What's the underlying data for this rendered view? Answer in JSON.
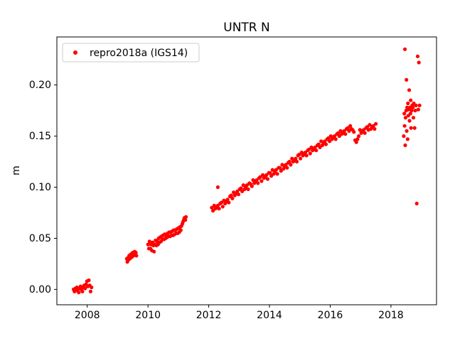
{
  "chart_data": {
    "type": "scatter",
    "title": "UNTR N",
    "xlabel": "",
    "ylabel": "m",
    "xlim": [
      2007.0,
      2019.5
    ],
    "ylim": [
      -0.015,
      0.247
    ],
    "grid": false,
    "xticks": [
      2008,
      2010,
      2012,
      2014,
      2016,
      2018
    ],
    "xtick_labels": [
      "2008",
      "2010",
      "2012",
      "2014",
      "2016",
      "2018"
    ],
    "yticks": [
      0.0,
      0.05,
      0.1,
      0.15,
      0.2
    ],
    "ytick_labels": [
      "0.00",
      "0.05",
      "0.10",
      "0.15",
      "0.20"
    ],
    "legend": {
      "position": "upper left",
      "entries": [
        {
          "label": "repro2018a (IGS14)",
          "marker": "dot",
          "color": "#ff0000"
        }
      ]
    },
    "series": [
      {
        "name": "repro2018a (IGS14)",
        "color": "#ff0000",
        "marker": "dot",
        "marker_radius": 2.6,
        "points": [
          [
            2007.55,
            0.0
          ],
          [
            2007.58,
            -0.002
          ],
          [
            2007.61,
            0.001
          ],
          [
            2007.63,
            -0.001
          ],
          [
            2007.66,
            0.002
          ],
          [
            2007.69,
            0.0
          ],
          [
            2007.72,
            -0.003
          ],
          [
            2007.75,
            0.001
          ],
          [
            2007.78,
            0.003
          ],
          [
            2007.81,
            0.0
          ],
          [
            2007.84,
            -0.002
          ],
          [
            2007.87,
            0.002
          ],
          [
            2007.9,
            0.004
          ],
          [
            2007.93,
            0.001
          ],
          [
            2007.96,
            0.005
          ],
          [
            2007.99,
            0.008
          ],
          [
            2008.02,
            0.003
          ],
          [
            2008.05,
            0.009
          ],
          [
            2008.08,
            0.004
          ],
          [
            2008.11,
            -0.002
          ],
          [
            2008.14,
            0.002
          ],
          [
            2009.3,
            0.03
          ],
          [
            2009.32,
            0.027
          ],
          [
            2009.34,
            0.031
          ],
          [
            2009.36,
            0.029
          ],
          [
            2009.38,
            0.033
          ],
          [
            2009.4,
            0.03
          ],
          [
            2009.42,
            0.034
          ],
          [
            2009.44,
            0.031
          ],
          [
            2009.46,
            0.035
          ],
          [
            2009.48,
            0.032
          ],
          [
            2009.5,
            0.036
          ],
          [
            2009.52,
            0.033
          ],
          [
            2009.54,
            0.035
          ],
          [
            2009.56,
            0.037
          ],
          [
            2009.58,
            0.034
          ],
          [
            2009.6,
            0.036
          ],
          [
            2009.62,
            0.033
          ],
          [
            2010.0,
            0.044
          ],
          [
            2010.03,
            0.04
          ],
          [
            2010.05,
            0.047
          ],
          [
            2010.08,
            0.04
          ],
          [
            2010.1,
            0.044
          ],
          [
            2010.13,
            0.038
          ],
          [
            2010.15,
            0.046
          ],
          [
            2010.18,
            0.043
          ],
          [
            2010.2,
            0.037
          ],
          [
            2010.23,
            0.044
          ],
          [
            2010.25,
            0.048
          ],
          [
            2010.28,
            0.043
          ],
          [
            2010.3,
            0.047
          ],
          [
            2010.33,
            0.044
          ],
          [
            2010.35,
            0.05
          ],
          [
            2010.38,
            0.046
          ],
          [
            2010.4,
            0.051
          ],
          [
            2010.43,
            0.047
          ],
          [
            2010.45,
            0.052
          ],
          [
            2010.48,
            0.049
          ],
          [
            2010.5,
            0.053
          ],
          [
            2010.53,
            0.049
          ],
          [
            2010.55,
            0.054
          ],
          [
            2010.58,
            0.05
          ],
          [
            2010.6,
            0.053
          ],
          [
            2010.63,
            0.051
          ],
          [
            2010.65,
            0.055
          ],
          [
            2010.68,
            0.052
          ],
          [
            2010.7,
            0.056
          ],
          [
            2010.73,
            0.052
          ],
          [
            2010.75,
            0.056
          ],
          [
            2010.78,
            0.053
          ],
          [
            2010.8,
            0.057
          ],
          [
            2010.83,
            0.053
          ],
          [
            2010.85,
            0.058
          ],
          [
            2010.88,
            0.054
          ],
          [
            2010.9,
            0.058
          ],
          [
            2010.93,
            0.055
          ],
          [
            2010.95,
            0.059
          ],
          [
            2010.98,
            0.055
          ],
          [
            2011.0,
            0.06
          ],
          [
            2011.03,
            0.056
          ],
          [
            2011.05,
            0.061
          ],
          [
            2011.08,
            0.058
          ],
          [
            2011.1,
            0.062
          ],
          [
            2011.13,
            0.064
          ],
          [
            2011.15,
            0.066
          ],
          [
            2011.18,
            0.068
          ],
          [
            2011.2,
            0.07
          ],
          [
            2011.23,
            0.068
          ],
          [
            2011.25,
            0.071
          ],
          [
            2012.1,
            0.08
          ],
          [
            2012.14,
            0.077
          ],
          [
            2012.18,
            0.082
          ],
          [
            2012.22,
            0.079
          ],
          [
            2012.26,
            0.08
          ],
          [
            2012.3,
            0.082
          ],
          [
            2012.3,
            0.1
          ],
          [
            2012.34,
            0.079
          ],
          [
            2012.38,
            0.084
          ],
          [
            2012.42,
            0.085
          ],
          [
            2012.46,
            0.081
          ],
          [
            2012.5,
            0.087
          ],
          [
            2012.54,
            0.084
          ],
          [
            2012.58,
            0.086
          ],
          [
            2012.62,
            0.088
          ],
          [
            2012.66,
            0.085
          ],
          [
            2012.7,
            0.091
          ],
          [
            2012.74,
            0.092
          ],
          [
            2012.78,
            0.089
          ],
          [
            2012.82,
            0.095
          ],
          [
            2012.86,
            0.092
          ],
          [
            2012.9,
            0.094
          ],
          [
            2012.94,
            0.096
          ],
          [
            2012.98,
            0.093
          ],
          [
            2013.02,
            0.098
          ],
          [
            2013.06,
            0.099
          ],
          [
            2013.1,
            0.096
          ],
          [
            2013.14,
            0.102
          ],
          [
            2013.18,
            0.098
          ],
          [
            2013.22,
            0.1
          ],
          [
            2013.26,
            0.102
          ],
          [
            2013.3,
            0.098
          ],
          [
            2013.34,
            0.104
          ],
          [
            2013.38,
            0.103
          ],
          [
            2013.42,
            0.101
          ],
          [
            2013.46,
            0.107
          ],
          [
            2013.5,
            0.104
          ],
          [
            2013.54,
            0.106
          ],
          [
            2013.58,
            0.107
          ],
          [
            2013.62,
            0.104
          ],
          [
            2013.66,
            0.109
          ],
          [
            2013.7,
            0.11
          ],
          [
            2013.74,
            0.106
          ],
          [
            2013.78,
            0.112
          ],
          [
            2013.82,
            0.109
          ],
          [
            2013.86,
            0.11
          ],
          [
            2013.9,
            0.112
          ],
          [
            2013.94,
            0.108
          ],
          [
            2013.98,
            0.114
          ],
          [
            2014.02,
            0.114
          ],
          [
            2014.06,
            0.111
          ],
          [
            2014.1,
            0.117
          ],
          [
            2014.14,
            0.113
          ],
          [
            2014.18,
            0.115
          ],
          [
            2014.22,
            0.117
          ],
          [
            2014.26,
            0.113
          ],
          [
            2014.3,
            0.119
          ],
          [
            2014.34,
            0.119
          ],
          [
            2014.38,
            0.116
          ],
          [
            2014.42,
            0.122
          ],
          [
            2014.46,
            0.118
          ],
          [
            2014.5,
            0.12
          ],
          [
            2014.54,
            0.122
          ],
          [
            2014.58,
            0.119
          ],
          [
            2014.62,
            0.124
          ],
          [
            2014.66,
            0.125
          ],
          [
            2014.7,
            0.122
          ],
          [
            2014.74,
            0.128
          ],
          [
            2014.78,
            0.125
          ],
          [
            2014.82,
            0.126
          ],
          [
            2014.86,
            0.128
          ],
          [
            2014.9,
            0.125
          ],
          [
            2014.94,
            0.131
          ],
          [
            2014.98,
            0.132
          ],
          [
            2015.02,
            0.128
          ],
          [
            2015.06,
            0.134
          ],
          [
            2015.1,
            0.131
          ],
          [
            2015.14,
            0.132
          ],
          [
            2015.18,
            0.134
          ],
          [
            2015.22,
            0.131
          ],
          [
            2015.26,
            0.136
          ],
          [
            2015.3,
            0.137
          ],
          [
            2015.34,
            0.133
          ],
          [
            2015.38,
            0.139
          ],
          [
            2015.42,
            0.136
          ],
          [
            2015.46,
            0.137
          ],
          [
            2015.5,
            0.139
          ],
          [
            2015.54,
            0.136
          ],
          [
            2015.58,
            0.141
          ],
          [
            2015.62,
            0.142
          ],
          [
            2015.66,
            0.139
          ],
          [
            2015.7,
            0.145
          ],
          [
            2015.74,
            0.141
          ],
          [
            2015.78,
            0.143
          ],
          [
            2015.82,
            0.145
          ],
          [
            2015.86,
            0.142
          ],
          [
            2015.9,
            0.147
          ],
          [
            2015.94,
            0.148
          ],
          [
            2015.98,
            0.145
          ],
          [
            2016.02,
            0.15
          ],
          [
            2016.06,
            0.147
          ],
          [
            2016.1,
            0.149
          ],
          [
            2016.14,
            0.15
          ],
          [
            2016.18,
            0.147
          ],
          [
            2016.22,
            0.152
          ],
          [
            2016.26,
            0.153
          ],
          [
            2016.3,
            0.15
          ],
          [
            2016.34,
            0.155
          ],
          [
            2016.38,
            0.152
          ],
          [
            2016.42,
            0.153
          ],
          [
            2016.46,
            0.155
          ],
          [
            2016.5,
            0.152
          ],
          [
            2016.54,
            0.157
          ],
          [
            2016.58,
            0.158
          ],
          [
            2016.62,
            0.155
          ],
          [
            2016.66,
            0.16
          ],
          [
            2016.7,
            0.157
          ],
          [
            2016.74,
            0.156
          ],
          [
            2016.78,
            0.154
          ],
          [
            2016.82,
            0.146
          ],
          [
            2016.86,
            0.144
          ],
          [
            2016.9,
            0.147
          ],
          [
            2016.94,
            0.15
          ],
          [
            2016.98,
            0.156
          ],
          [
            2017.02,
            0.153
          ],
          [
            2017.06,
            0.155
          ],
          [
            2017.1,
            0.156
          ],
          [
            2017.14,
            0.153
          ],
          [
            2017.18,
            0.158
          ],
          [
            2017.22,
            0.159
          ],
          [
            2017.26,
            0.156
          ],
          [
            2017.3,
            0.161
          ],
          [
            2017.34,
            0.157
          ],
          [
            2017.38,
            0.159
          ],
          [
            2017.42,
            0.16
          ],
          [
            2017.46,
            0.157
          ],
          [
            2017.5,
            0.162
          ],
          [
            2018.42,
            0.15
          ],
          [
            2018.44,
            0.172
          ],
          [
            2018.45,
            0.16
          ],
          [
            2018.46,
            0.235
          ],
          [
            2018.47,
            0.141
          ],
          [
            2018.48,
            0.168
          ],
          [
            2018.5,
            0.175
          ],
          [
            2018.51,
            0.205
          ],
          [
            2018.52,
            0.155
          ],
          [
            2018.53,
            0.178
          ],
          [
            2018.55,
            0.147
          ],
          [
            2018.56,
            0.182
          ],
          [
            2018.57,
            0.17
          ],
          [
            2018.58,
            0.176
          ],
          [
            2018.6,
            0.195
          ],
          [
            2018.61,
            0.165
          ],
          [
            2018.62,
            0.178
          ],
          [
            2018.64,
            0.172
          ],
          [
            2018.65,
            0.185
          ],
          [
            2018.66,
            0.158
          ],
          [
            2018.68,
            0.175
          ],
          [
            2018.7,
            0.18
          ],
          [
            2018.72,
            0.178
          ],
          [
            2018.74,
            0.168
          ],
          [
            2018.75,
            0.182
          ],
          [
            2018.78,
            0.158
          ],
          [
            2018.8,
            0.175
          ],
          [
            2018.82,
            0.18
          ],
          [
            2018.85,
            0.084
          ],
          [
            2018.88,
            0.228
          ],
          [
            2018.9,
            0.176
          ],
          [
            2018.92,
            0.222
          ],
          [
            2018.94,
            0.18
          ]
        ]
      }
    ],
    "axes_style": {
      "facecolor": "#ffffff",
      "spine_color": "#000000",
      "legend_edge_color": "#cccccc"
    }
  }
}
